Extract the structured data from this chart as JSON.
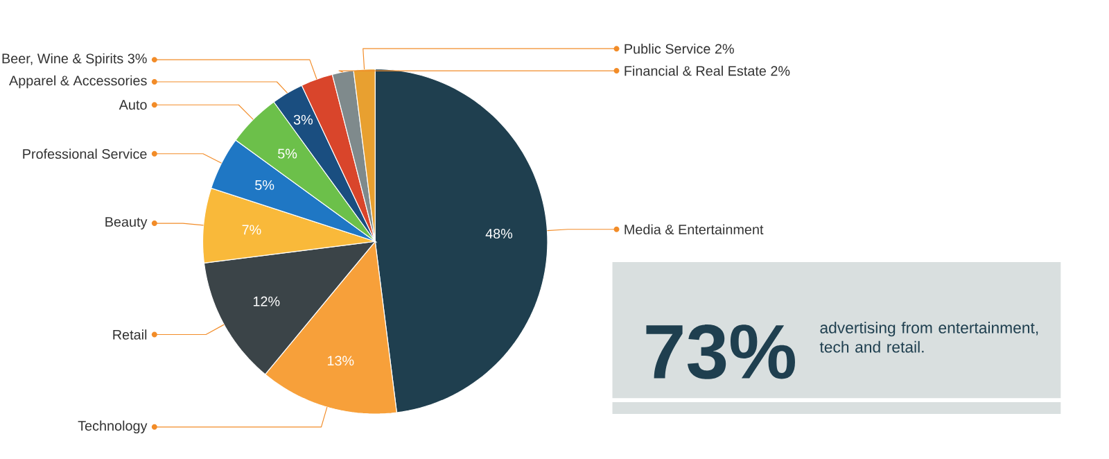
{
  "chart_data": {
    "type": "pie",
    "categories": [
      "Media & Entertainment",
      "Technology",
      "Retail",
      "Beauty",
      "Professional Service",
      "Auto",
      "Apparel & Accessories",
      "Beer, Wine & Spirits 3%",
      "Financial & Real Estate 2%",
      "Public Service 2%"
    ],
    "values": [
      48,
      13,
      12,
      7,
      5,
      5,
      3,
      3,
      2,
      2
    ],
    "colors": [
      "#1f3f4f",
      "#f7a03a",
      "#3b4448",
      "#f9b93a",
      "#1f77c4",
      "#6cc04a",
      "#1a4e80",
      "#d9452b",
      "#7f8a8c",
      "#e8a030"
    ],
    "value_labels": [
      "48%",
      "13%",
      "12%",
      "7%",
      "5%",
      "5%",
      "3%",
      null,
      null,
      null
    ],
    "annotations": [
      "73%",
      "advertising from entertainment, tech and retail."
    ]
  }
}
